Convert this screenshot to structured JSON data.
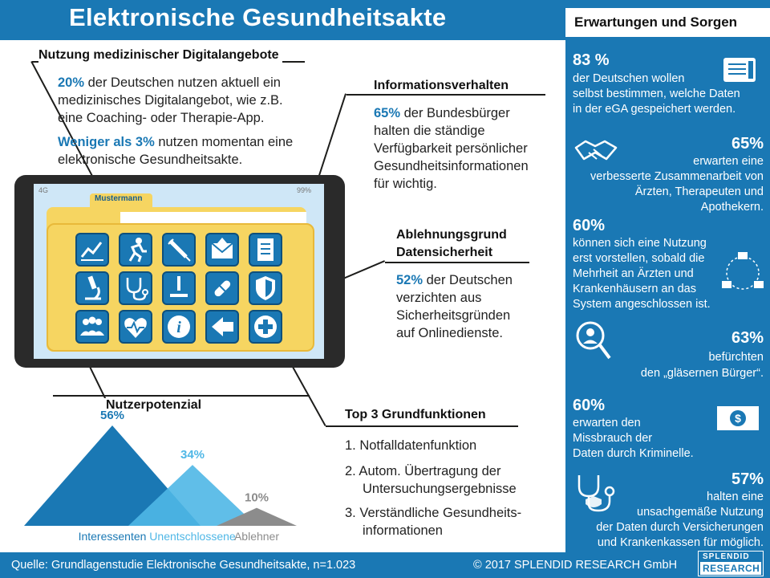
{
  "header": {
    "title": "Elektronische Gesundheitsakte"
  },
  "nutzung": {
    "heading": "Nutzung medizinischer Digitalangebote",
    "stat1_pct": "20%",
    "stat1_l1": "der Deutschen nutzen aktuell ein",
    "stat1_l2": "medizinisches Digitalangebot, wie z.B.",
    "stat1_l3": "eine Coaching- oder Therapie-App.",
    "stat2_pct": "Weniger als 3%",
    "stat2_l1": "nutzen momentan eine",
    "stat2_l2": "elektronische Gesundheitsakte."
  },
  "info": {
    "heading": "Informationsverhalten",
    "pct": "65%",
    "l1": "der Bundesbürger",
    "l2": "halten die ständige",
    "l3": "Verfügbarkeit persönlicher",
    "l4": "Gesundheitsinformationen",
    "l5": "für wichtig."
  },
  "ablehnung": {
    "heading1": "Ablehnungsgrund",
    "heading2": "Datensicherheit",
    "pct": "52%",
    "l1": "der Deutschen",
    "l2": "verzichten aus",
    "l3": "Sicherheitsgründen",
    "l4": "auf Onlinedienste."
  },
  "tablet": {
    "folder_label": "Mustermann",
    "status_left": "4G",
    "status_right": "99%",
    "icons": [
      "chart-icon",
      "runner-icon",
      "syringe-icon",
      "mail-icon",
      "document-icon",
      "microscope-icon",
      "stethoscope-icon",
      "scalpel-icon",
      "pill-icon",
      "shield-icon",
      "group-icon",
      "heartbeat-icon",
      "info-icon",
      "forward-icon",
      "medical-cross-icon"
    ]
  },
  "potenzial": {
    "heading": "Nutzerpotenzial"
  },
  "chart_data": {
    "type": "area",
    "title": "Nutzerpotenzial",
    "categories": [
      "Interessenten",
      "Unentschlossene",
      "Ablehner"
    ],
    "values": [
      56,
      34,
      10
    ],
    "value_labels": [
      "56%",
      "34%",
      "10%"
    ],
    "colors": [
      "#1a78b4",
      "#4fb7e6",
      "#8c8c8c"
    ]
  },
  "top3": {
    "heading": "Top 3 Grundfunktionen",
    "i1": "1. Notfalldatenfunktion",
    "i2a": "2. Autom. Übertragung der",
    "i2b": "Untersuchungsergebnisse",
    "i3a": "3. Verständliche Gesundheits-",
    "i3b": "informationen"
  },
  "right": {
    "title": "Erwartungen und Sorgen",
    "s1_pct": "83 %",
    "s1_l1": "der Deutschen wollen",
    "s1_l2": "selbst bestimmen, welche Daten",
    "s1_l3": "in der eGA gespeichert werden.",
    "s2_pct": "65%",
    "s2_l1": "erwarten eine",
    "s2_l2": "verbesserte Zusammenarbeit von",
    "s2_l3": "Ärzten, Therapeuten und",
    "s2_l4": "Apothekern.",
    "s3_pct": "60%",
    "s3_l1": "können sich eine Nutzung",
    "s3_l2": "erst vorstellen, sobald die",
    "s3_l3": "Mehrheit an Ärzten und",
    "s3_l4": "Krankenhäusern an das",
    "s3_l5": "System angeschlossen ist.",
    "s4_pct": "63%",
    "s4_l1": "befürchten",
    "s4_l2": "den „gläsernen Bürger“.",
    "s5_pct": "60%",
    "s5_l1": "erwarten den",
    "s5_l2": "Missbrauch der",
    "s5_l3": "Daten durch Kriminelle.",
    "s6_pct": "57%",
    "s6_l1": "halten eine",
    "s6_l2": "unsachgemäße Nutzung",
    "s6_l3": "der Daten durch Versicherungen",
    "s6_l4": "und Krankenkassen für möglich."
  },
  "footer": {
    "source": "Quelle: Grundlagenstudie Elektronische Gesundheitsakte, n=1.023",
    "copyright": "© 2017 SPLENDID RESEARCH GmbH",
    "logo_line1": "SPLENDID",
    "logo_line2": "RESEARCH"
  }
}
